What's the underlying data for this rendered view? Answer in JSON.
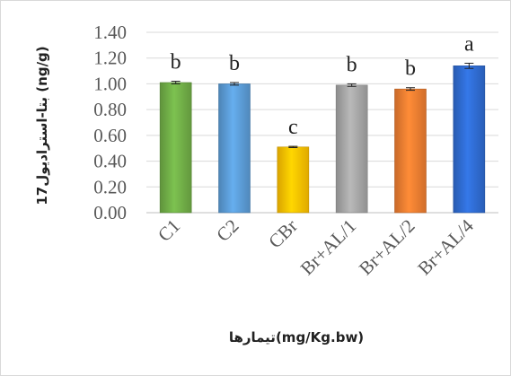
{
  "chart_data": {
    "type": "bar",
    "title": "",
    "ylabel": "17بتا-استرادیول (ng/g)",
    "xlabel": "تیمارها(mg/Kg.bw)",
    "ylim": [
      0,
      1.4
    ],
    "ytick_labels": [
      "0.00",
      "0.20",
      "0.40",
      "0.60",
      "0.80",
      "1.00",
      "1.20",
      "1.40"
    ],
    "grid": true,
    "categories": [
      "C1",
      "C2",
      "CBr",
      "Br+AL/1",
      "Br+AL/2",
      "Br+AL/4"
    ],
    "values": [
      1.01,
      1.0,
      0.51,
      0.99,
      0.96,
      1.14
    ],
    "errors": [
      0.01,
      0.01,
      0.005,
      0.01,
      0.01,
      0.02
    ],
    "significance_labels": [
      "b",
      "b",
      "c",
      "b",
      "b",
      "a"
    ],
    "colors": [
      "#70ad47",
      "#5b9bd5",
      "#ffc000",
      "#a5a5a5",
      "#ed7d31",
      "#2f6bd0"
    ]
  }
}
